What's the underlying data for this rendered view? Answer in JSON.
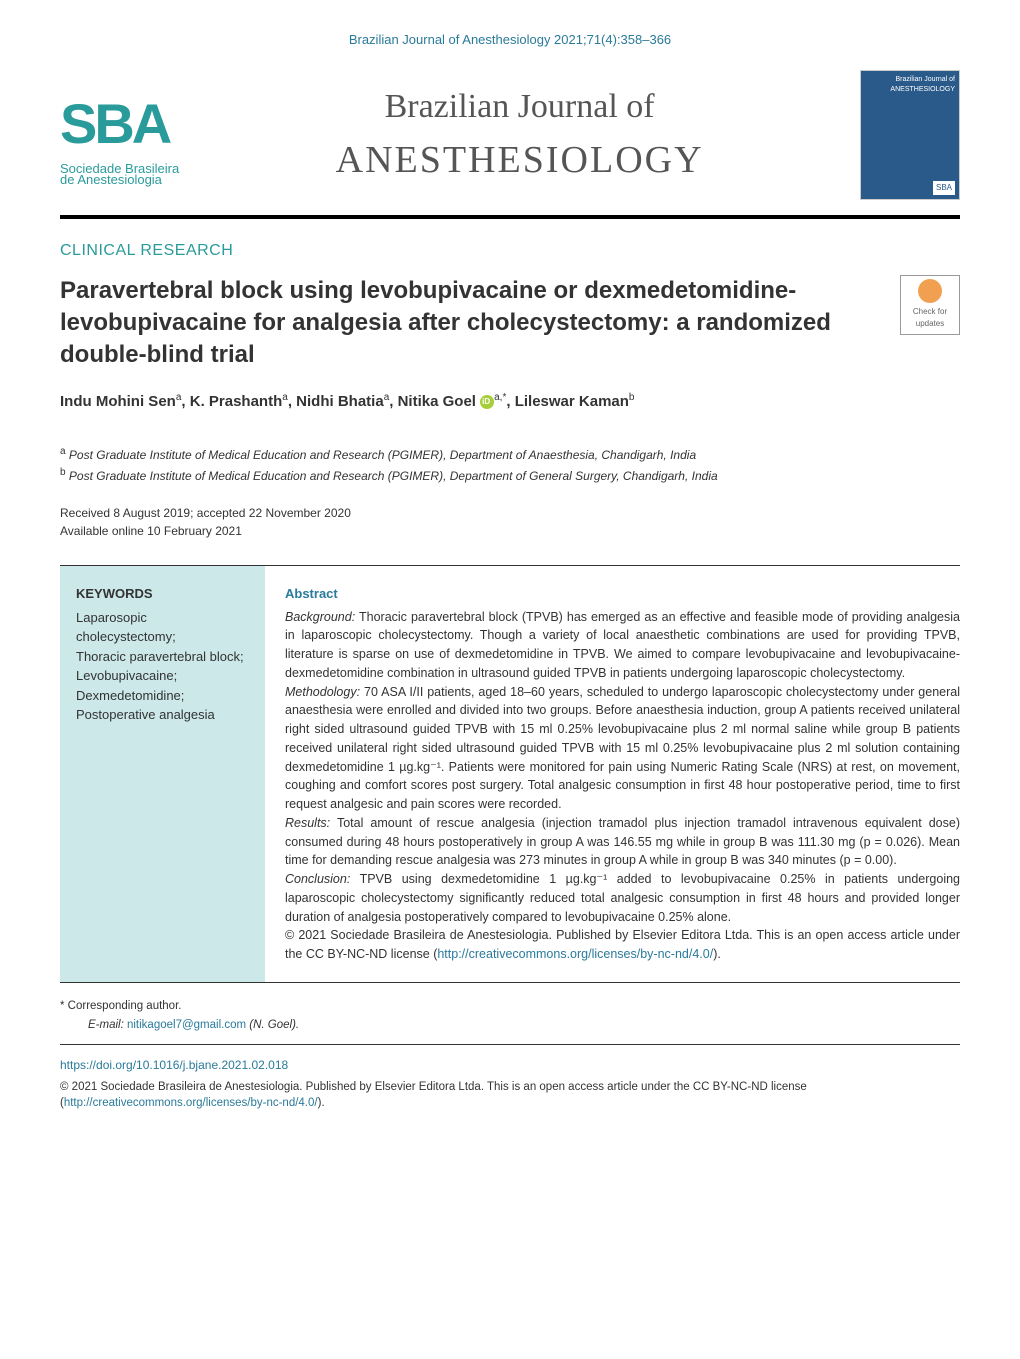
{
  "citation": "Brazilian Journal of Anesthesiology 2021;71(4):358–366",
  "logo": {
    "abbrev": "SBA",
    "line1": "Sociedade Brasileira",
    "line2": "de Anestesiologia"
  },
  "journal_title": {
    "line1": "Brazilian Journal of",
    "line2": "ANESTHESIOLOGY"
  },
  "cover": {
    "top": "Brazilian Journal of ANESTHESIOLOGY",
    "bottom": "SBA"
  },
  "section_label": "CLINICAL RESEARCH",
  "title": "Paravertebral block using levobupivacaine or dexmedetomidine-levobupivacaine for analgesia after cholecystectomy: a randomized double-blind trial",
  "updates_label": "Check for updates",
  "authors": [
    {
      "name": "Indu Mohini Sen",
      "sup": "a"
    },
    {
      "name": "K. Prashanth",
      "sup": "a"
    },
    {
      "name": "Nidhi Bhatia",
      "sup": "a"
    },
    {
      "name": "Nitika Goel",
      "sup": "a,*",
      "orcid": true
    },
    {
      "name": "Lileswar Kaman",
      "sup": "b"
    }
  ],
  "affiliations": [
    {
      "sup": "a",
      "text": "Post Graduate Institute of Medical Education and Research (PGIMER), Department of Anaesthesia, Chandigarh, India"
    },
    {
      "sup": "b",
      "text": "Post Graduate Institute of Medical Education and Research (PGIMER), Department of General Surgery, Chandigarh, India"
    }
  ],
  "dates": {
    "received": "Received 8 August 2019; accepted 22 November 2020",
    "available": "Available online 10 February 2021"
  },
  "keywords": {
    "heading": "KEYWORDS",
    "items": "Laparosopic cholecystectomy;\nThoracic paravertebral block;\nLevobupivacaine;\nDexmedetomidine;\nPostoperative analgesia"
  },
  "abstract": {
    "heading": "Abstract",
    "background_label": "Background:",
    "background": " Thoracic paravertebral block (TPVB) has emerged as an effective and feasible mode of providing analgesia in laparoscopic cholecystectomy. Though a variety of local anaesthetic combinations are used for providing TPVB, literature is sparse on use of dexmedetomidine in TPVB. We aimed to compare levobupivacaine and levobupivacaine-dexmedetomidine combination in ultrasound guided TPVB in patients undergoing laparoscopic cholecystectomy.",
    "methodology_label": "Methodology:",
    "methodology": " 70 ASA I/II patients, aged 18–60 years, scheduled to undergo laparoscopic cholecystectomy under general anaesthesia were enrolled and divided into two groups. Before anaesthesia induction, group A patients received unilateral right sided ultrasound guided TPVB with 15 ml 0.25% levobupivacaine plus 2 ml normal saline while group B patients received unilateral right sided ultrasound guided TPVB with 15 ml 0.25% levobupivacaine plus 2 ml solution containing dexmedetomidine 1 µg.kg⁻¹. Patients were monitored for pain using Numeric Rating Scale (NRS) at rest, on movement, coughing and comfort scores post surgery. Total analgesic consumption in first 48 hour postoperative period, time to first request analgesic and pain scores were recorded.",
    "results_label": "Results:",
    "results": " Total amount of rescue analgesia (injection tramadol plus injection tramadol intravenous equivalent dose) consumed during 48 hours postoperatively in group A was 146.55 mg while in group B was 111.30 mg (p = 0.026). Mean time for demanding rescue analgesia was 273 minutes in group A while in group B was 340 minutes (p = 0.00).",
    "conclusion_label": "Conclusion:",
    "conclusion": " TPVB using dexmedetomidine 1 µg.kg⁻¹ added to levobupivacaine 0.25% in patients undergoing laparoscopic cholecystectomy significantly reduced total analgesic consumption in first 48 hours and provided longer duration of analgesia postoperatively compared to levobupivacaine 0.25% alone.",
    "copyright": "© 2021 Sociedade Brasileira de Anestesiologia. Published by Elsevier Editora Ltda. This is an open access article under the CC BY-NC-ND license (",
    "license_url": "http://creativecommons.org/licenses/by-nc-nd/4.0/",
    "copyright_close": ")."
  },
  "corresponding": {
    "label": "* Corresponding author.",
    "email_label": "E-mail:",
    "email": "nitikagoel7@gmail.com",
    "name": "(N. Goel)."
  },
  "doi": "https://doi.org/10.1016/j.bjane.2021.02.018",
  "footer_copy": "© 2021 Sociedade Brasileira de Anestesiologia. Published by Elsevier Editora Ltda. This is an open access article under the CC BY-NC-ND license (",
  "footer_license_url": "http://creativecommons.org/licenses/by-nc-nd/4.0/",
  "footer_close": ").",
  "colors": {
    "teal": "#2a9b9b",
    "link": "#2a7a9a",
    "keyword_bg": "#cce8e8",
    "cover_bg": "#2a5a8a",
    "orcid": "#a6ce39",
    "updates": "#f0a050"
  }
}
